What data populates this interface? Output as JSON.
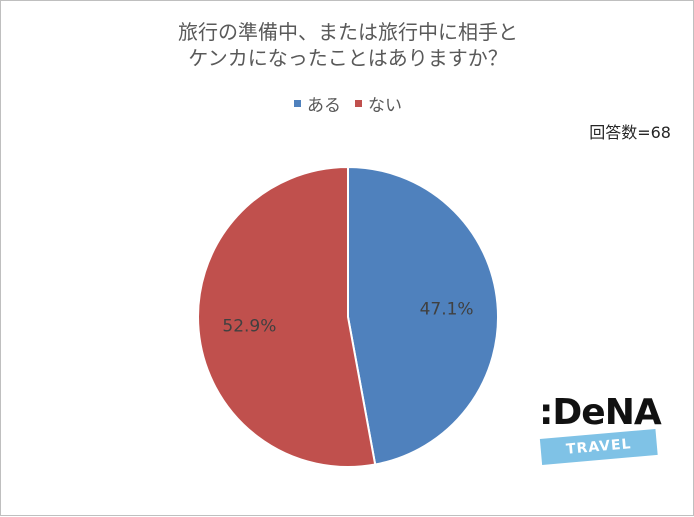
{
  "chart_data": {
    "type": "pie",
    "title_lines": [
      "旅行の準備中、または旅行中に相手と",
      "ケンカになったことはありますか？"
    ],
    "categories": [
      "ある",
      "ない"
    ],
    "values": [
      47.1,
      52.9
    ],
    "value_labels": [
      "47.1%",
      "52.9%"
    ],
    "colors": [
      "#4f81bd",
      "#c0504d"
    ],
    "legend_position": "top",
    "start_angle": "12-o'clock, clockwise"
  },
  "note": {
    "response_count": "回答数=68"
  },
  "logo": {
    "brand": ":DeNA",
    "sub": "TRAVEL"
  }
}
